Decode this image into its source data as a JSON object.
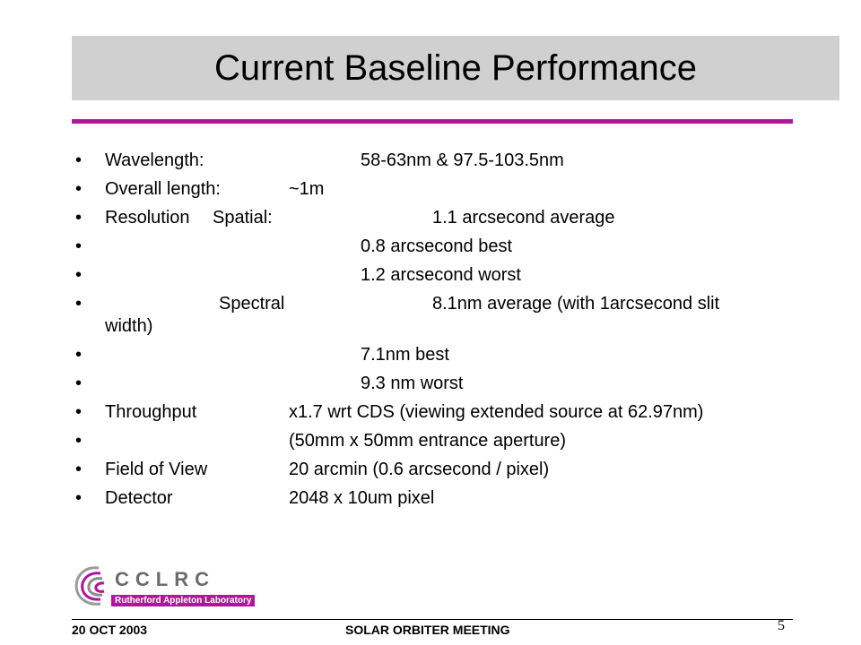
{
  "slide": {
    "title": "Current Baseline Performance",
    "accent_color": "#b4149b"
  },
  "bullets": [
    {
      "c1": "Wavelength:",
      "c2": "58-63nm & 97.5-103.5nm"
    },
    {
      "c1": "Overall length:",
      "c2": "~1m"
    },
    {
      "c1": "Resolution",
      "c2": "Spatial:",
      "c3": "1.1 arcsecond average"
    },
    {
      "c3": "0.8 arcsecond best"
    },
    {
      "c3": "1.2 arcsecond worst"
    },
    {
      "c2": "Spectral",
      "c3": "8.1nm average (with 1arcsecond slit",
      "cont": "width)"
    },
    {
      "c3": "7.1nm best"
    },
    {
      "c3": "9.3 nm worst"
    },
    {
      "c1": "Throughput",
      "c2": "x1.7 wrt CDS (viewing extended source at 62.97nm)"
    },
    {
      "c2": "(50mm x 50mm entrance aperture)"
    },
    {
      "c1": "Field of View",
      "c2": "20 arcmin (0.6 arcsecond / pixel)"
    },
    {
      "c1": "Detector",
      "c2": "2048 x 10um pixel"
    }
  ],
  "bullet_glyph": "•",
  "logo": {
    "name": "CCLRC",
    "subtitle": "Rutherford Appleton Laboratory"
  },
  "footer": {
    "date": "20 OCT 2003",
    "meeting": "SOLAR ORBITER MEETING",
    "page_number": "5"
  }
}
